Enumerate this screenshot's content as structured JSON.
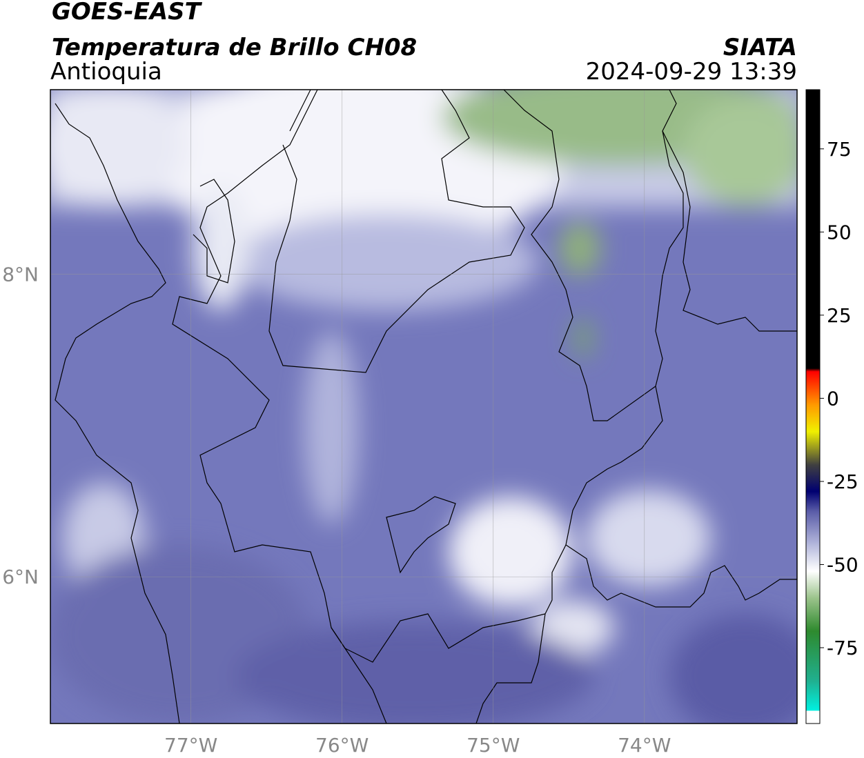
{
  "header": {
    "title": "GOES-EAST",
    "subtitle": "Temperatura de Brillo CH08",
    "region": "Antioquia",
    "source": "SIATA",
    "datetime": "2024-09-29 13:39"
  },
  "map": {
    "xlim": [
      -77.93,
      -72.99
    ],
    "ylim": [
      5.03,
      9.22
    ],
    "xticks": [
      {
        "value": -77,
        "label": "77°W"
      },
      {
        "value": -76,
        "label": "76°W"
      },
      {
        "value": -75,
        "label": "75°W"
      },
      {
        "value": -74,
        "label": "74°W"
      }
    ],
    "yticks": [
      {
        "value": 8,
        "label": "8°N"
      },
      {
        "value": 6,
        "label": "6°N"
      }
    ],
    "grid": true
  },
  "colorbar": {
    "lim": [
      -97.8,
      92.8
    ],
    "ticks": [
      75,
      50,
      25,
      0,
      -25,
      -50,
      -75
    ],
    "stops": [
      {
        "value": -97.8,
        "color": "#ffffff"
      },
      {
        "value": -94,
        "color": "#ffffff"
      },
      {
        "value": -93.9,
        "color": "#00f0e0"
      },
      {
        "value": -85,
        "color": "#20b090"
      },
      {
        "value": -70,
        "color": "#2e8a2e"
      },
      {
        "value": -60,
        "color": "#9cc48c"
      },
      {
        "value": -52,
        "color": "#ffffff"
      },
      {
        "value": -44,
        "color": "#b4b8dc"
      },
      {
        "value": -34,
        "color": "#5a5ca8"
      },
      {
        "value": -28,
        "color": "#000070"
      },
      {
        "value": -20,
        "color": "#404040"
      },
      {
        "value": -10,
        "color": "#f0f000"
      },
      {
        "value": -2,
        "color": "#ff9a00"
      },
      {
        "value": 8,
        "color": "#ff0000"
      },
      {
        "value": 9,
        "color": "#000000"
      },
      {
        "value": 92.8,
        "color": "#000000"
      }
    ]
  }
}
